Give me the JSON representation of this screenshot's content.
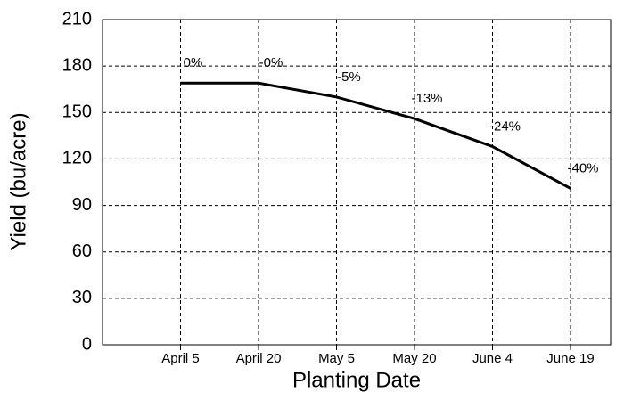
{
  "chart_data": {
    "type": "line",
    "x_label": "Planting Date",
    "y_label": "Yield (bu/acre)",
    "categories": [
      "April 5",
      "April 20",
      "May 5",
      "May 20",
      "June 4",
      "June 19"
    ],
    "series": [
      {
        "color": "#000000",
        "values": [
          169,
          169,
          160,
          146,
          128,
          101
        ]
      }
    ],
    "annotations": {
      "values": [
        0,
        0,
        -5,
        -13,
        -24,
        -40
      ],
      "value_labels": [
        "0%",
        "-0%",
        "-5%",
        "-13%",
        "-24%",
        "-40%"
      ]
    },
    "ylim": [
      0,
      210
    ],
    "yticks": [
      0,
      30,
      60,
      90,
      120,
      150,
      180,
      210
    ],
    "grid": true
  }
}
